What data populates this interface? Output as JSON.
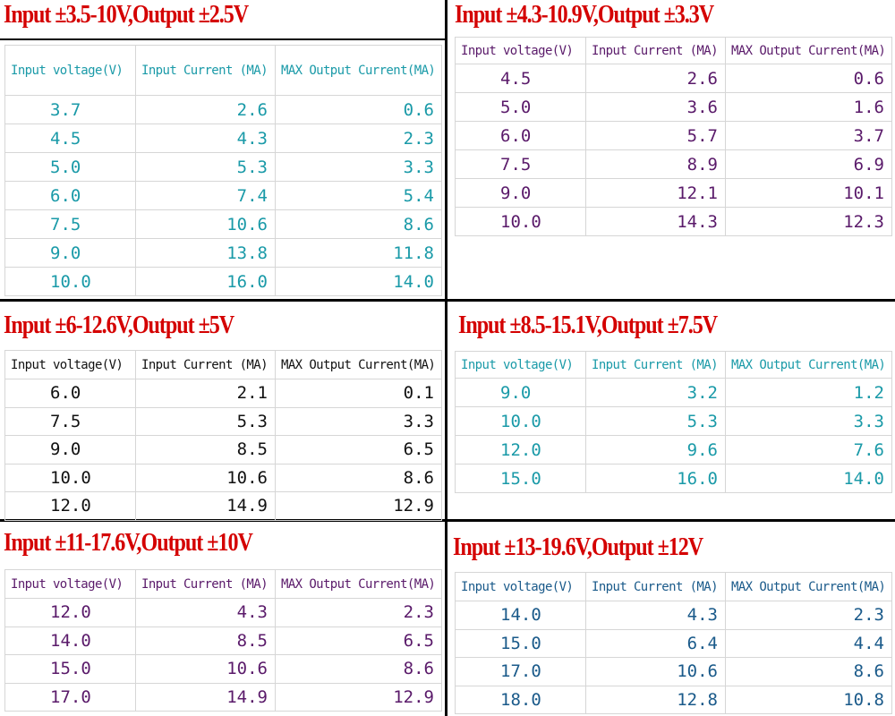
{
  "headers": [
    "Input voltage(V)",
    "Input Current (MA)",
    "MAX Output Current(MA)"
  ],
  "panels": [
    {
      "title": "Input ±3.5-10V,Output ±2.5V",
      "color": "#1a9aa8",
      "rows": [
        [
          "3.7",
          "2.6",
          "0.6"
        ],
        [
          "4.5",
          "4.3",
          "2.3"
        ],
        [
          "5.0",
          "5.3",
          "3.3"
        ],
        [
          "6.0",
          "7.4",
          "5.4"
        ],
        [
          "7.5",
          "10.6",
          "8.6"
        ],
        [
          "9.0",
          "13.8",
          "11.8"
        ],
        [
          "10.0",
          "16.0",
          "14.0"
        ]
      ]
    },
    {
      "title": "Input ±4.3-10.9V,Output ±3.3V",
      "color": "#5a1a6a",
      "rows": [
        [
          "4.5",
          "2.6",
          "0.6"
        ],
        [
          "5.0",
          "3.6",
          "1.6"
        ],
        [
          "6.0",
          "5.7",
          "3.7"
        ],
        [
          "7.5",
          "8.9",
          "6.9"
        ],
        [
          "9.0",
          "12.1",
          "10.1"
        ],
        [
          "10.0",
          "14.3",
          "12.3"
        ]
      ]
    },
    {
      "title": "Input ±6-12.6V,Output ±5V",
      "color": "#111111",
      "rows": [
        [
          "6.0",
          "2.1",
          "0.1"
        ],
        [
          "7.5",
          "5.3",
          "3.3"
        ],
        [
          "9.0",
          "8.5",
          "6.5"
        ],
        [
          "10.0",
          "10.6",
          "8.6"
        ],
        [
          "12.0",
          "14.9",
          "12.9"
        ]
      ]
    },
    {
      "title": "Input ±8.5-15.1V,Output ±7.5V",
      "color": "#1a9aa8",
      "rows": [
        [
          "9.0",
          "3.2",
          "1.2"
        ],
        [
          "10.0",
          "5.3",
          "3.3"
        ],
        [
          "12.0",
          "9.6",
          "7.6"
        ],
        [
          "15.0",
          "16.0",
          "14.0"
        ]
      ]
    },
    {
      "title": "Input ±11-17.6V,Output ±10V",
      "color": "#5a1a6a",
      "rows": [
        [
          "12.0",
          "4.3",
          "2.3"
        ],
        [
          "14.0",
          "8.5",
          "6.5"
        ],
        [
          "15.0",
          "10.6",
          "8.6"
        ],
        [
          "17.0",
          "14.9",
          "12.9"
        ]
      ]
    },
    {
      "title": "Input ±13-19.6V,Output ±12V",
      "color": "#1a5a8a",
      "rows": [
        [
          "14.0",
          "4.3",
          "2.3"
        ],
        [
          "15.0",
          "6.4",
          "4.4"
        ],
        [
          "17.0",
          "10.6",
          "8.6"
        ],
        [
          "18.0",
          "12.8",
          "10.8"
        ]
      ]
    }
  ]
}
